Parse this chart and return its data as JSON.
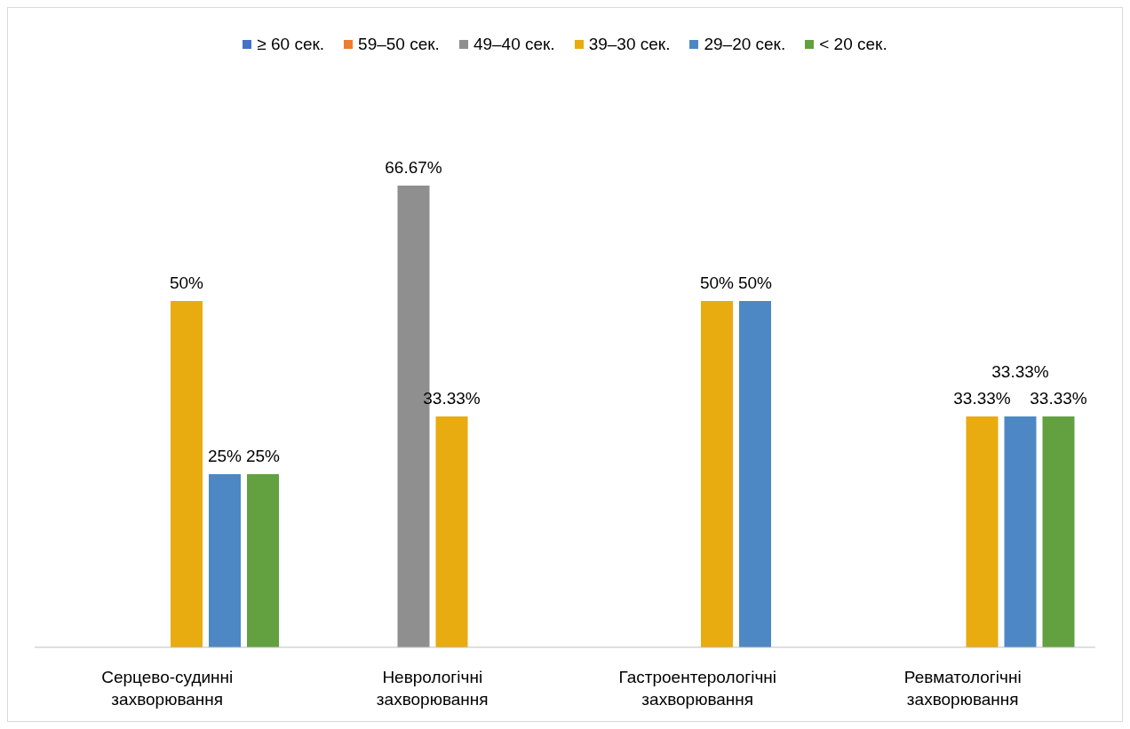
{
  "chart_data": {
    "type": "bar",
    "categories": [
      "Серцево-судинні захворювання",
      "Неврологічні захворювання",
      "Гастроентерологічні захворювання",
      "Ревматологічні захворювання"
    ],
    "series": [
      {
        "name": "≥ 60 сек.",
        "color": "#4472c4",
        "values": [
          null,
          null,
          null,
          null
        ]
      },
      {
        "name": "59–50 сек.",
        "color": "#ed7d31",
        "values": [
          null,
          null,
          null,
          null
        ]
      },
      {
        "name": "49–40 сек.",
        "color": "#8f8f8f",
        "values": [
          null,
          66.67,
          null,
          null
        ],
        "value_labels": [
          null,
          "66.67%",
          null,
          null
        ]
      },
      {
        "name": "39–30 сек.",
        "color": "#e8ab10",
        "values": [
          50,
          33.33,
          50,
          33.33
        ],
        "value_labels": [
          "50%",
          "33.33%",
          "50%",
          "33.33%"
        ]
      },
      {
        "name": "29–20 сек.",
        "color": "#4d88c4",
        "values": [
          25,
          null,
          50,
          33.33
        ],
        "value_labels": [
          "25%",
          null,
          "50%",
          "33.33%"
        ]
      },
      {
        "name": "< 20 сек.",
        "color": "#63a040",
        "values": [
          25,
          null,
          null,
          33.33
        ],
        "value_labels": [
          "25%",
          null,
          null,
          "33.33%"
        ]
      }
    ],
    "legend": "top"
  }
}
